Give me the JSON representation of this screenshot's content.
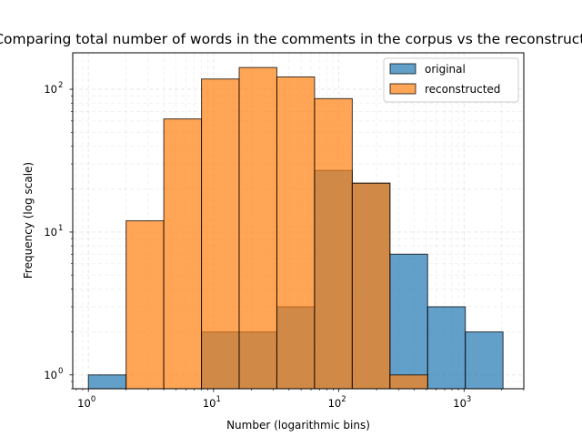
{
  "chart_data": {
    "type": "bar",
    "subtype": "histogram",
    "title": "Comparing total number of words in the comments in the corpus vs the reconstructed",
    "xlabel": "Number (logarithmic bins)",
    "ylabel": "Frequency (log scale)",
    "x_scale": "log",
    "y_scale": "log",
    "xlim": [
      0.75,
      3000
    ],
    "ylim": [
      0.8,
      180
    ],
    "grid": true,
    "legend_position": "top-right",
    "bin_edges": [
      1,
      2,
      4,
      8,
      16,
      32,
      64,
      128,
      256,
      512,
      1024,
      2048
    ],
    "x_ticks": [
      {
        "value": 1,
        "base": "10",
        "exp": "0"
      },
      {
        "value": 10,
        "base": "10",
        "exp": "1"
      },
      {
        "value": 100,
        "base": "10",
        "exp": "2"
      },
      {
        "value": 1000,
        "base": "10",
        "exp": "3"
      }
    ],
    "y_ticks": [
      {
        "value": 1,
        "base": "10",
        "exp": "0"
      },
      {
        "value": 10,
        "base": "10",
        "exp": "1"
      },
      {
        "value": 100,
        "base": "10",
        "exp": "2"
      }
    ],
    "series": [
      {
        "name": "original",
        "color": "#1f77b4",
        "values": [
          1,
          0,
          0,
          2,
          2,
          3,
          27,
          22,
          7,
          3,
          2
        ]
      },
      {
        "name": "reconstructed",
        "color": "#ff7f0e",
        "values": [
          0,
          12,
          62,
          118,
          142,
          122,
          86,
          22,
          1,
          0,
          0
        ]
      }
    ]
  }
}
